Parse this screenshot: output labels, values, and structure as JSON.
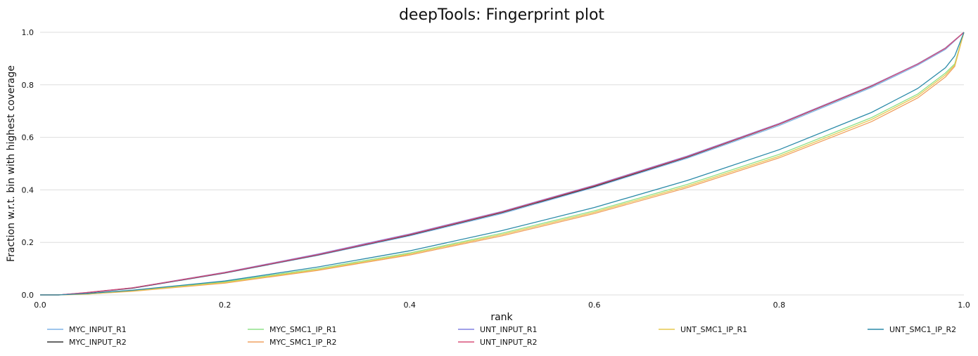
{
  "chart_data": {
    "type": "line",
    "title": "deepTools: Fingerprint plot",
    "xlabel": "rank",
    "ylabel": "Fraction w.r.t. bin with highest coverage",
    "xlim": [
      0.0,
      1.0
    ],
    "ylim": [
      0.0,
      1.0
    ],
    "xticks": [
      "0.0",
      "0.2",
      "0.4",
      "0.6",
      "0.8",
      "1.0"
    ],
    "yticks": [
      "0.0",
      "0.2",
      "0.4",
      "0.6",
      "0.8",
      "1.0"
    ],
    "grid": "horizontal",
    "legend_position": "bottom",
    "series": [
      {
        "name": "MYC_INPUT_R1",
        "color": "#7fb2e6",
        "x": [
          0.0,
          0.02,
          0.05,
          0.1,
          0.2,
          0.3,
          0.4,
          0.5,
          0.6,
          0.7,
          0.8,
          0.9,
          0.95,
          0.98,
          1.0
        ],
        "y": [
          0.0,
          0.0,
          0.008,
          0.025,
          0.083,
          0.15,
          0.225,
          0.31,
          0.41,
          0.52,
          0.645,
          0.79,
          0.875,
          0.935,
          1.0
        ]
      },
      {
        "name": "MYC_INPUT_R2",
        "color": "#333333",
        "x": [
          0.0,
          0.02,
          0.05,
          0.1,
          0.2,
          0.3,
          0.4,
          0.5,
          0.6,
          0.7,
          0.8,
          0.9,
          0.95,
          0.98,
          1.0
        ],
        "y": [
          0.0,
          0.0,
          0.008,
          0.026,
          0.084,
          0.152,
          0.228,
          0.314,
          0.413,
          0.524,
          0.65,
          0.795,
          0.88,
          0.94,
          1.0
        ]
      },
      {
        "name": "MYC_SMC1_IP_R1",
        "color": "#8fe089",
        "x": [
          0.0,
          0.02,
          0.05,
          0.1,
          0.2,
          0.3,
          0.4,
          0.5,
          0.6,
          0.7,
          0.8,
          0.9,
          0.95,
          0.98,
          0.99,
          1.0
        ],
        "y": [
          0.0,
          0.0,
          0.004,
          0.016,
          0.05,
          0.1,
          0.16,
          0.235,
          0.32,
          0.42,
          0.535,
          0.675,
          0.765,
          0.845,
          0.88,
          1.0
        ]
      },
      {
        "name": "MYC_SMC1_IP_R2",
        "color": "#f0a060",
        "x": [
          0.0,
          0.02,
          0.05,
          0.1,
          0.2,
          0.3,
          0.4,
          0.5,
          0.6,
          0.7,
          0.8,
          0.9,
          0.95,
          0.98,
          0.99,
          1.0
        ],
        "y": [
          0.0,
          0.0,
          0.003,
          0.014,
          0.045,
          0.093,
          0.152,
          0.225,
          0.31,
          0.408,
          0.522,
          0.66,
          0.75,
          0.83,
          0.87,
          1.0
        ]
      },
      {
        "name": "UNT_INPUT_R1",
        "color": "#8080e0",
        "x": [
          0.0,
          0.02,
          0.05,
          0.1,
          0.2,
          0.3,
          0.4,
          0.5,
          0.6,
          0.7,
          0.8,
          0.9,
          0.95,
          0.98,
          1.0
        ],
        "y": [
          0.0,
          0.0,
          0.009,
          0.027,
          0.086,
          0.155,
          0.232,
          0.318,
          0.418,
          0.528,
          0.653,
          0.797,
          0.88,
          0.94,
          1.0
        ]
      },
      {
        "name": "UNT_INPUT_R2",
        "color": "#d9507a",
        "x": [
          0.0,
          0.02,
          0.05,
          0.1,
          0.2,
          0.3,
          0.4,
          0.5,
          0.6,
          0.7,
          0.8,
          0.9,
          0.95,
          0.98,
          1.0
        ],
        "y": [
          0.0,
          0.0,
          0.009,
          0.027,
          0.085,
          0.153,
          0.23,
          0.316,
          0.416,
          0.526,
          0.651,
          0.796,
          0.879,
          0.939,
          1.0
        ]
      },
      {
        "name": "UNT_SMC1_IP_R1",
        "color": "#e6c84e",
        "x": [
          0.0,
          0.02,
          0.05,
          0.1,
          0.2,
          0.3,
          0.4,
          0.5,
          0.6,
          0.7,
          0.8,
          0.9,
          0.95,
          0.98,
          0.99,
          1.0
        ],
        "y": [
          0.0,
          0.0,
          0.003,
          0.015,
          0.047,
          0.096,
          0.156,
          0.23,
          0.315,
          0.414,
          0.528,
          0.668,
          0.758,
          0.838,
          0.875,
          1.0
        ]
      },
      {
        "name": "UNT_SMC1_IP_R2",
        "color": "#2a8aa8",
        "x": [
          0.0,
          0.02,
          0.05,
          0.1,
          0.2,
          0.3,
          0.4,
          0.5,
          0.6,
          0.7,
          0.8,
          0.9,
          0.95,
          0.98,
          0.99,
          1.0
        ],
        "y": [
          0.0,
          0.0,
          0.005,
          0.018,
          0.053,
          0.106,
          0.168,
          0.245,
          0.333,
          0.435,
          0.553,
          0.695,
          0.786,
          0.865,
          0.91,
          1.0
        ]
      }
    ]
  }
}
